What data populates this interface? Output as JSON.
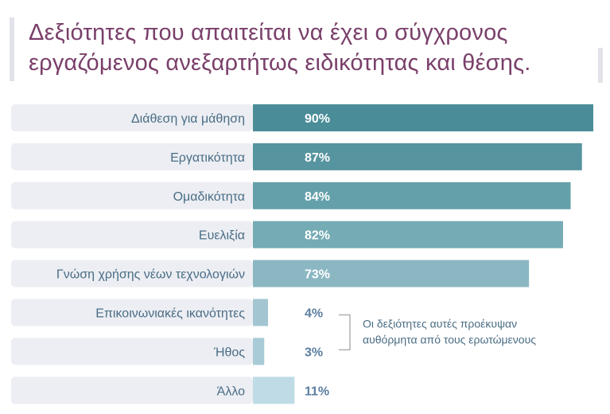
{
  "title": {
    "line1": "Δεξιότητες που απαιτείται να έχει ο σύγχρονος",
    "line2": "εργαζόμενος ανεξαρτήτως ειδικότητας και θέσης."
  },
  "chart_data": {
    "type": "bar",
    "orientation": "horizontal",
    "categories": [
      "Διάθεση για μάθηση",
      "Εργατικότητα",
      "Ομαδικότητα",
      "Ευελιξία",
      "Γνώση χρήσης νέων τεχνολογιών",
      "Επικοινωνιακές ικανότητες",
      "Ήθος",
      "Άλλο"
    ],
    "values": [
      90,
      87,
      84,
      82,
      73,
      4,
      3,
      11
    ],
    "value_labels": [
      "90%",
      "87%",
      "84%",
      "82%",
      "73%",
      "4%",
      "3%",
      "11%"
    ],
    "unit": "%",
    "xlim": [
      0,
      90
    ],
    "bar_colors": [
      "#4a8d99",
      "#56949f",
      "#64a0aa",
      "#75abb5",
      "#8ab7c2",
      "#a2c5d1",
      "#a9cbd7",
      "#bfdbe6"
    ],
    "annotation": {
      "text_line1": "Οι δεξιότητες αυτές προέκυψαν",
      "text_line2": "αυθόρμητα από τους ερωτώμενους",
      "applies_to": [
        "Επικοινωνιακές ικανότητες",
        "Ήθος"
      ]
    },
    "grid": false,
    "legend": "none"
  },
  "colors": {
    "title": "#7a3f6a",
    "label_text": "#4a6d85",
    "row_background": "#eceef3",
    "value_text_inside": "#ffffff",
    "value_text_outside": "#5b7fa0",
    "bracket": "#b0b0b0"
  }
}
